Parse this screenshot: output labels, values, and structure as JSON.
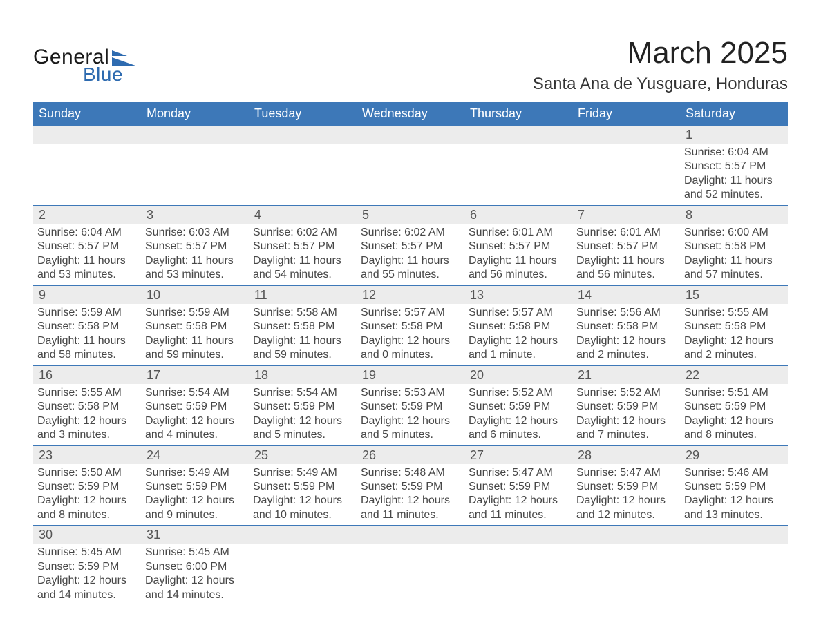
{
  "logo": {
    "general_text": "General",
    "blue_text": "Blue",
    "shape_color": "#2e6bb0",
    "text_color_dark": "#1a1a1a"
  },
  "title": {
    "month_year": "March 2025",
    "location": "Santa Ana de Yusguare, Honduras"
  },
  "weekday_headers": [
    "Sunday",
    "Monday",
    "Tuesday",
    "Wednesday",
    "Thursday",
    "Friday",
    "Saturday"
  ],
  "header_bg_color": "#3d78b8",
  "row_divider_color": "#3d78b8",
  "daynum_bg_color": "#ececec",
  "weeks": [
    [
      {
        "day": "",
        "sunrise": "",
        "sunset": "",
        "daylight": ""
      },
      {
        "day": "",
        "sunrise": "",
        "sunset": "",
        "daylight": ""
      },
      {
        "day": "",
        "sunrise": "",
        "sunset": "",
        "daylight": ""
      },
      {
        "day": "",
        "sunrise": "",
        "sunset": "",
        "daylight": ""
      },
      {
        "day": "",
        "sunrise": "",
        "sunset": "",
        "daylight": ""
      },
      {
        "day": "",
        "sunrise": "",
        "sunset": "",
        "daylight": ""
      },
      {
        "day": "1",
        "sunrise": "Sunrise: 6:04 AM",
        "sunset": "Sunset: 5:57 PM",
        "daylight": "Daylight: 11 hours and 52 minutes."
      }
    ],
    [
      {
        "day": "2",
        "sunrise": "Sunrise: 6:04 AM",
        "sunset": "Sunset: 5:57 PM",
        "daylight": "Daylight: 11 hours and 53 minutes."
      },
      {
        "day": "3",
        "sunrise": "Sunrise: 6:03 AM",
        "sunset": "Sunset: 5:57 PM",
        "daylight": "Daylight: 11 hours and 53 minutes."
      },
      {
        "day": "4",
        "sunrise": "Sunrise: 6:02 AM",
        "sunset": "Sunset: 5:57 PM",
        "daylight": "Daylight: 11 hours and 54 minutes."
      },
      {
        "day": "5",
        "sunrise": "Sunrise: 6:02 AM",
        "sunset": "Sunset: 5:57 PM",
        "daylight": "Daylight: 11 hours and 55 minutes."
      },
      {
        "day": "6",
        "sunrise": "Sunrise: 6:01 AM",
        "sunset": "Sunset: 5:57 PM",
        "daylight": "Daylight: 11 hours and 56 minutes."
      },
      {
        "day": "7",
        "sunrise": "Sunrise: 6:01 AM",
        "sunset": "Sunset: 5:57 PM",
        "daylight": "Daylight: 11 hours and 56 minutes."
      },
      {
        "day": "8",
        "sunrise": "Sunrise: 6:00 AM",
        "sunset": "Sunset: 5:58 PM",
        "daylight": "Daylight: 11 hours and 57 minutes."
      }
    ],
    [
      {
        "day": "9",
        "sunrise": "Sunrise: 5:59 AM",
        "sunset": "Sunset: 5:58 PM",
        "daylight": "Daylight: 11 hours and 58 minutes."
      },
      {
        "day": "10",
        "sunrise": "Sunrise: 5:59 AM",
        "sunset": "Sunset: 5:58 PM",
        "daylight": "Daylight: 11 hours and 59 minutes."
      },
      {
        "day": "11",
        "sunrise": "Sunrise: 5:58 AM",
        "sunset": "Sunset: 5:58 PM",
        "daylight": "Daylight: 11 hours and 59 minutes."
      },
      {
        "day": "12",
        "sunrise": "Sunrise: 5:57 AM",
        "sunset": "Sunset: 5:58 PM",
        "daylight": "Daylight: 12 hours and 0 minutes."
      },
      {
        "day": "13",
        "sunrise": "Sunrise: 5:57 AM",
        "sunset": "Sunset: 5:58 PM",
        "daylight": "Daylight: 12 hours and 1 minute."
      },
      {
        "day": "14",
        "sunrise": "Sunrise: 5:56 AM",
        "sunset": "Sunset: 5:58 PM",
        "daylight": "Daylight: 12 hours and 2 minutes."
      },
      {
        "day": "15",
        "sunrise": "Sunrise: 5:55 AM",
        "sunset": "Sunset: 5:58 PM",
        "daylight": "Daylight: 12 hours and 2 minutes."
      }
    ],
    [
      {
        "day": "16",
        "sunrise": "Sunrise: 5:55 AM",
        "sunset": "Sunset: 5:58 PM",
        "daylight": "Daylight: 12 hours and 3 minutes."
      },
      {
        "day": "17",
        "sunrise": "Sunrise: 5:54 AM",
        "sunset": "Sunset: 5:59 PM",
        "daylight": "Daylight: 12 hours and 4 minutes."
      },
      {
        "day": "18",
        "sunrise": "Sunrise: 5:54 AM",
        "sunset": "Sunset: 5:59 PM",
        "daylight": "Daylight: 12 hours and 5 minutes."
      },
      {
        "day": "19",
        "sunrise": "Sunrise: 5:53 AM",
        "sunset": "Sunset: 5:59 PM",
        "daylight": "Daylight: 12 hours and 5 minutes."
      },
      {
        "day": "20",
        "sunrise": "Sunrise: 5:52 AM",
        "sunset": "Sunset: 5:59 PM",
        "daylight": "Daylight: 12 hours and 6 minutes."
      },
      {
        "day": "21",
        "sunrise": "Sunrise: 5:52 AM",
        "sunset": "Sunset: 5:59 PM",
        "daylight": "Daylight: 12 hours and 7 minutes."
      },
      {
        "day": "22",
        "sunrise": "Sunrise: 5:51 AM",
        "sunset": "Sunset: 5:59 PM",
        "daylight": "Daylight: 12 hours and 8 minutes."
      }
    ],
    [
      {
        "day": "23",
        "sunrise": "Sunrise: 5:50 AM",
        "sunset": "Sunset: 5:59 PM",
        "daylight": "Daylight: 12 hours and 8 minutes."
      },
      {
        "day": "24",
        "sunrise": "Sunrise: 5:49 AM",
        "sunset": "Sunset: 5:59 PM",
        "daylight": "Daylight: 12 hours and 9 minutes."
      },
      {
        "day": "25",
        "sunrise": "Sunrise: 5:49 AM",
        "sunset": "Sunset: 5:59 PM",
        "daylight": "Daylight: 12 hours and 10 minutes."
      },
      {
        "day": "26",
        "sunrise": "Sunrise: 5:48 AM",
        "sunset": "Sunset: 5:59 PM",
        "daylight": "Daylight: 12 hours and 11 minutes."
      },
      {
        "day": "27",
        "sunrise": "Sunrise: 5:47 AM",
        "sunset": "Sunset: 5:59 PM",
        "daylight": "Daylight: 12 hours and 11 minutes."
      },
      {
        "day": "28",
        "sunrise": "Sunrise: 5:47 AM",
        "sunset": "Sunset: 5:59 PM",
        "daylight": "Daylight: 12 hours and 12 minutes."
      },
      {
        "day": "29",
        "sunrise": "Sunrise: 5:46 AM",
        "sunset": "Sunset: 5:59 PM",
        "daylight": "Daylight: 12 hours and 13 minutes."
      }
    ],
    [
      {
        "day": "30",
        "sunrise": "Sunrise: 5:45 AM",
        "sunset": "Sunset: 5:59 PM",
        "daylight": "Daylight: 12 hours and 14 minutes."
      },
      {
        "day": "31",
        "sunrise": "Sunrise: 5:45 AM",
        "sunset": "Sunset: 6:00 PM",
        "daylight": "Daylight: 12 hours and 14 minutes."
      },
      {
        "day": "",
        "sunrise": "",
        "sunset": "",
        "daylight": ""
      },
      {
        "day": "",
        "sunrise": "",
        "sunset": "",
        "daylight": ""
      },
      {
        "day": "",
        "sunrise": "",
        "sunset": "",
        "daylight": ""
      },
      {
        "day": "",
        "sunrise": "",
        "sunset": "",
        "daylight": ""
      },
      {
        "day": "",
        "sunrise": "",
        "sunset": "",
        "daylight": ""
      }
    ]
  ]
}
